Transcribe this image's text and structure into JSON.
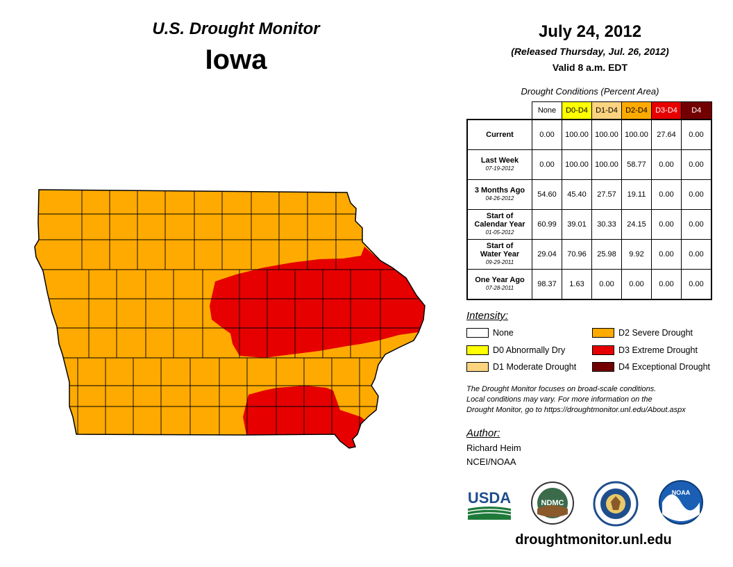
{
  "header": {
    "title": "U.S. Drought Monitor",
    "state": "Iowa",
    "date": "July 24, 2012",
    "released": "(Released Thursday, Jul. 26, 2012)",
    "valid": "Valid 8 a.m. EDT"
  },
  "table": {
    "title": "Drought Conditions (Percent Area)",
    "columns": [
      {
        "label": "None",
        "bg": "#ffffff",
        "fg": "#000000"
      },
      {
        "label": "D0-D4",
        "bg": "#ffff00",
        "fg": "#000000"
      },
      {
        "label": "D1-D4",
        "bg": "#fcd37f",
        "fg": "#000000"
      },
      {
        "label": "D2-D4",
        "bg": "#ffaa00",
        "fg": "#000000"
      },
      {
        "label": "D3-D4",
        "bg": "#e60000",
        "fg": "#ffffff"
      },
      {
        "label": "D4",
        "bg": "#730000",
        "fg": "#ffffff"
      }
    ],
    "rows": [
      {
        "label": "Current",
        "label2": "",
        "date": "",
        "values": [
          "0.00",
          "100.00",
          "100.00",
          "100.00",
          "27.64",
          "0.00"
        ]
      },
      {
        "label": "Last Week",
        "label2": "",
        "date": "07-19-2012",
        "values": [
          "0.00",
          "100.00",
          "100.00",
          "58.77",
          "0.00",
          "0.00"
        ]
      },
      {
        "label": "3 Months Ago",
        "label2": "",
        "date": "04-26-2012",
        "values": [
          "54.60",
          "45.40",
          "27.57",
          "19.11",
          "0.00",
          "0.00"
        ]
      },
      {
        "label": "Start of",
        "label2": "Calendar Year",
        "date": "01-05-2012",
        "values": [
          "60.99",
          "39.01",
          "30.33",
          "24.15",
          "0.00",
          "0.00"
        ]
      },
      {
        "label": "Start of",
        "label2": "Water Year",
        "date": "09-29-2011",
        "values": [
          "29.04",
          "70.96",
          "25.98",
          "9.92",
          "0.00",
          "0.00"
        ]
      },
      {
        "label": "One Year Ago",
        "label2": "",
        "date": "07-28-2011",
        "values": [
          "98.37",
          "1.63",
          "0.00",
          "0.00",
          "0.00",
          "0.00"
        ]
      }
    ]
  },
  "legend": {
    "title": "Intensity:",
    "items": [
      {
        "label": "None",
        "color": "#ffffff"
      },
      {
        "label": "D0 Abnormally Dry",
        "color": "#ffff00"
      },
      {
        "label": "D1 Moderate Drought",
        "color": "#fcd37f"
      },
      {
        "label": "D2 Severe Drought",
        "color": "#ffaa00"
      },
      {
        "label": "D3 Extreme Drought",
        "color": "#e60000"
      },
      {
        "label": "D4 Exceptional Drought",
        "color": "#730000"
      }
    ]
  },
  "note": {
    "line1": "The Drought Monitor focuses on broad-scale conditions.",
    "line2": "Local conditions may vary. For more information on the",
    "line3": "Drought Monitor, go to https://droughtmonitor.unl.edu/About.aspx"
  },
  "author": {
    "title": "Author:",
    "name": "Richard Heim",
    "org": "NCEI/NOAA"
  },
  "logos": {
    "usda": "USDA",
    "ndmc": "NDMC",
    "noaa": "NOAA"
  },
  "website": "droughtmonitor.unl.edu",
  "map_colors": {
    "d2": "#ffaa00",
    "d3": "#e60000",
    "county_line": "#000000"
  }
}
